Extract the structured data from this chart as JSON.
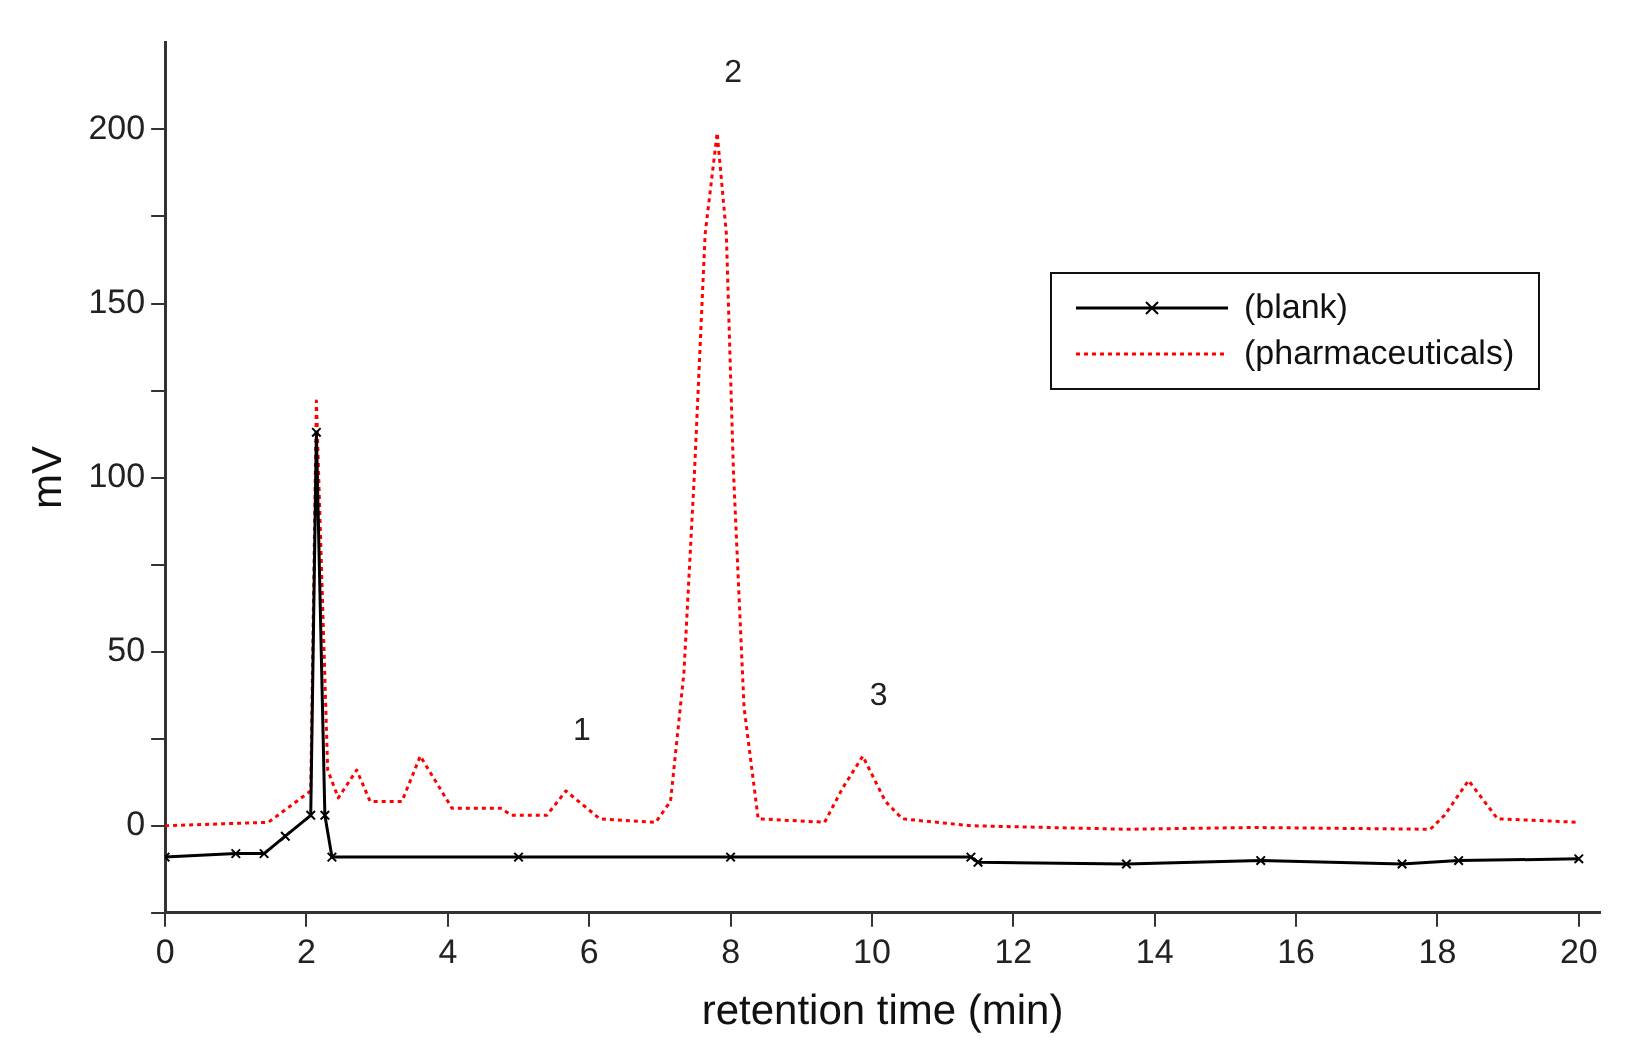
{
  "chart_data": {
    "type": "line",
    "xlabel": "retention time (min)",
    "ylabel": "mV",
    "xlim": [
      0,
      20.3
    ],
    "xticks": [
      0,
      2,
      4,
      6,
      8,
      10,
      12,
      14,
      16,
      18,
      20
    ],
    "ylim": [
      -25,
      225
    ],
    "yticks": [
      {
        "value": -25,
        "label": null
      },
      0,
      {
        "value": 25,
        "label": null
      },
      50,
      {
        "value": 75,
        "label": null
      },
      100,
      {
        "value": 125,
        "label": null
      },
      150,
      {
        "value": 175,
        "label": null
      },
      200
    ],
    "grid": false,
    "legend": "top right",
    "annotations": [
      {
        "text": "1",
        "x": 5.67,
        "y": 10
      },
      {
        "text": "2",
        "x": 7.81,
        "y": 199
      },
      {
        "text": "3",
        "x": 9.87,
        "y": 20
      }
    ],
    "series": [
      {
        "name": "(blank)",
        "color": "#000000",
        "marker": "cross",
        "line_style": "solid",
        "x": [
          0,
          1.0,
          1.4,
          1.7,
          2.06,
          2.14,
          2.26,
          2.36,
          5,
          8,
          11.4,
          11.5,
          13.6,
          15.5,
          17.5,
          18.3,
          20.0
        ],
        "values": [
          -9,
          -8,
          -8,
          -3,
          3,
          113,
          3,
          -9,
          -9,
          -9,
          -9,
          -10.5,
          -11,
          -10,
          -11,
          -10,
          -9.5
        ]
      },
      {
        "name": "(pharmaceuticals)",
        "color": "#ff0000",
        "marker": "none",
        "line_style": "dotted",
        "x": [
          0,
          1.46,
          2.06,
          2.14,
          2.3,
          2.45,
          2.71,
          2.9,
          3.35,
          3.61,
          4.06,
          4.75,
          4.9,
          5.4,
          5.67,
          6.15,
          6.94,
          7.15,
          7.34,
          7.49,
          7.64,
          7.81,
          7.94,
          8.04,
          8.19,
          8.39,
          9.33,
          9.59,
          9.87,
          10.19,
          10.43,
          11.4,
          13.6,
          15.4,
          17.9,
          18.1,
          18.44,
          18.85,
          20.0
        ],
        "values": [
          0,
          1,
          10,
          122,
          16,
          8,
          16,
          7,
          7,
          20,
          5,
          5,
          3,
          3,
          10,
          2,
          1,
          7,
          44,
          102,
          170,
          199,
          170,
          102,
          34,
          2,
          1,
          11,
          20,
          7,
          2,
          0,
          -1,
          -0.5,
          -1,
          3,
          13,
          2,
          1
        ]
      }
    ]
  }
}
